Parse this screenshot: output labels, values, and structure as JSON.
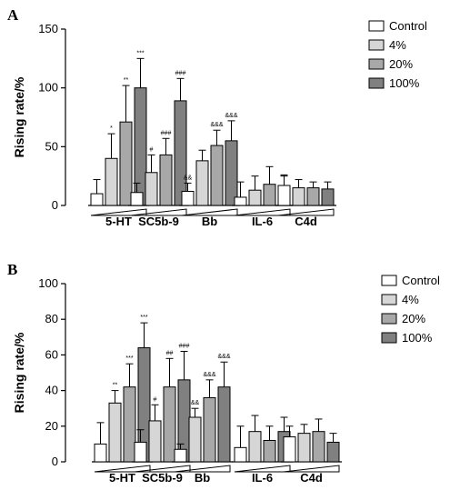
{
  "colors": {
    "control": "#ffffff",
    "s4": "#d6d6d6",
    "s20": "#a8a8a8",
    "s100": "#808080",
    "stroke": "#000000"
  },
  "chart_data": [
    {
      "type": "bar",
      "panel_label": "A",
      "ylabel": "Rising rate/%",
      "ylim": [
        0,
        150
      ],
      "yticks": [
        0,
        50,
        100,
        150
      ],
      "categories": [
        "5-HT",
        "SC5b-9",
        "Bb",
        "IL-6",
        "C4d"
      ],
      "series": [
        {
          "name": "Control",
          "values": [
            10,
            11,
            12,
            7,
            17
          ],
          "errors": [
            12,
            8,
            7,
            13,
            9
          ]
        },
        {
          "name": "4%",
          "values": [
            40,
            28,
            38,
            13,
            15
          ],
          "errors": [
            21,
            15,
            9,
            12,
            7
          ]
        },
        {
          "name": "20%",
          "values": [
            71,
            43,
            51,
            18,
            15
          ],
          "errors": [
            31,
            14,
            13,
            15,
            5
          ]
        },
        {
          "name": "100%",
          "values": [
            100,
            89,
            55,
            15,
            14
          ],
          "errors": [
            25,
            19,
            17,
            10,
            6
          ]
        }
      ],
      "annotations": [
        {
          "category": 0,
          "series": 1,
          "text": "*"
        },
        {
          "category": 0,
          "series": 2,
          "text": "**"
        },
        {
          "category": 0,
          "series": 3,
          "text": "***"
        },
        {
          "category": 1,
          "series": 1,
          "text": "#"
        },
        {
          "category": 1,
          "series": 2,
          "text": "###"
        },
        {
          "category": 1,
          "series": 3,
          "text": "###"
        },
        {
          "category": 2,
          "series": 0,
          "text": "&&"
        },
        {
          "category": 2,
          "series": 2,
          "text": "&&&"
        },
        {
          "category": 2,
          "series": 3,
          "text": "&&&"
        }
      ],
      "legend_position": "top-right"
    },
    {
      "type": "bar",
      "panel_label": "B",
      "ylabel": "Rising rate/%",
      "ylim": [
        0,
        100
      ],
      "yticks": [
        0,
        20,
        40,
        60,
        80,
        100
      ],
      "categories": [
        "5-HT",
        "SC5b-9",
        "Bb",
        "IL-6",
        "C4d"
      ],
      "series": [
        {
          "name": "Control",
          "values": [
            10,
            11,
            7,
            8,
            14
          ],
          "errors": [
            12,
            7,
            3,
            12,
            6
          ]
        },
        {
          "name": "4%",
          "values": [
            33,
            23,
            25,
            17,
            16
          ],
          "errors": [
            7,
            9,
            5,
            9,
            5
          ]
        },
        {
          "name": "20%",
          "values": [
            42,
            42,
            36,
            12,
            17
          ],
          "errors": [
            13,
            16,
            10,
            8,
            7
          ]
        },
        {
          "name": "100%",
          "values": [
            64,
            46,
            42,
            17,
            11
          ],
          "errors": [
            14,
            16,
            14,
            8,
            5
          ]
        }
      ],
      "annotations": [
        {
          "category": 0,
          "series": 1,
          "text": "**"
        },
        {
          "category": 0,
          "series": 2,
          "text": "***"
        },
        {
          "category": 0,
          "series": 3,
          "text": "***"
        },
        {
          "category": 1,
          "series": 1,
          "text": "#"
        },
        {
          "category": 1,
          "series": 2,
          "text": "##"
        },
        {
          "category": 1,
          "series": 3,
          "text": "###"
        },
        {
          "category": 2,
          "series": 1,
          "text": "&&"
        },
        {
          "category": 2,
          "series": 2,
          "text": "&&&"
        },
        {
          "category": 2,
          "series": 3,
          "text": "&&&"
        }
      ],
      "legend_position": "top-right"
    }
  ]
}
